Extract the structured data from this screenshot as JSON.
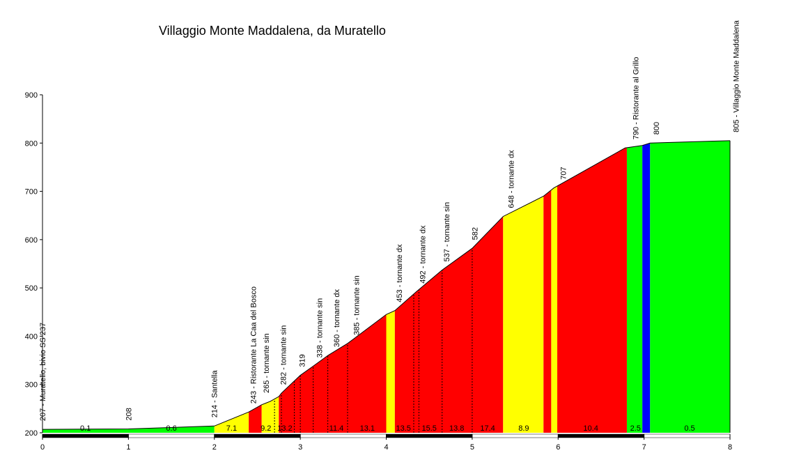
{
  "chart_data": {
    "type": "area",
    "title": "Villaggio Monte Maddalena, da Muratello",
    "xlim": [
      0,
      8
    ],
    "ylim": [
      200,
      900
    ],
    "x_ticks": [
      0,
      1,
      2,
      3,
      4,
      5,
      6,
      7,
      8
    ],
    "y_ticks": [
      200,
      300,
      400,
      500,
      600,
      700,
      800,
      900
    ],
    "colors": {
      "green": "#00ff00",
      "yellow": "#ffff00",
      "red": "#ff0000",
      "blue": "#0000ff",
      "axis": "#000000"
    },
    "profile": [
      {
        "x": 0.0,
        "y": 207
      },
      {
        "x": 1.0,
        "y": 208
      },
      {
        "x": 2.0,
        "y": 214
      },
      {
        "x": 2.4,
        "y": 243
      },
      {
        "x": 2.55,
        "y": 258
      },
      {
        "x": 2.65,
        "y": 265
      },
      {
        "x": 2.75,
        "y": 275
      },
      {
        "x": 2.78,
        "y": 282
      },
      {
        "x": 3.0,
        "y": 319
      },
      {
        "x": 3.15,
        "y": 338
      },
      {
        "x": 3.32,
        "y": 360
      },
      {
        "x": 3.55,
        "y": 385
      },
      {
        "x": 4.0,
        "y": 445
      },
      {
        "x": 4.1,
        "y": 453
      },
      {
        "x": 4.35,
        "y": 492
      },
      {
        "x": 4.65,
        "y": 537
      },
      {
        "x": 5.0,
        "y": 582
      },
      {
        "x": 5.36,
        "y": 648
      },
      {
        "x": 5.83,
        "y": 690
      },
      {
        "x": 5.95,
        "y": 707
      },
      {
        "x": 6.78,
        "y": 790
      },
      {
        "x": 6.98,
        "y": 795
      },
      {
        "x": 7.07,
        "y": 800
      },
      {
        "x": 8.0,
        "y": 805
      }
    ],
    "bands": [
      {
        "x0": 0.0,
        "x1": 2.0,
        "color": "green"
      },
      {
        "x0": 2.0,
        "x1": 2.4,
        "color": "yellow"
      },
      {
        "x0": 2.4,
        "x1": 2.55,
        "color": "red"
      },
      {
        "x0": 2.55,
        "x1": 2.75,
        "color": "yellow"
      },
      {
        "x0": 2.75,
        "x1": 4.0,
        "color": "red"
      },
      {
        "x0": 4.0,
        "x1": 4.1,
        "color": "yellow"
      },
      {
        "x0": 4.1,
        "x1": 5.36,
        "color": "red"
      },
      {
        "x0": 5.36,
        "x1": 5.83,
        "color": "yellow"
      },
      {
        "x0": 5.83,
        "x1": 5.92,
        "color": "red"
      },
      {
        "x0": 5.92,
        "x1": 5.99,
        "color": "yellow"
      },
      {
        "x0": 5.99,
        "x1": 6.8,
        "color": "red"
      },
      {
        "x0": 6.8,
        "x1": 6.98,
        "color": "green"
      },
      {
        "x0": 6.98,
        "x1": 7.07,
        "color": "blue"
      },
      {
        "x0": 7.07,
        "x1": 8.0,
        "color": "green"
      }
    ],
    "dashed_lines": [
      2.7,
      2.78,
      2.93,
      3.0,
      3.15,
      3.32,
      3.55,
      4.32,
      4.38,
      4.65,
      5.0
    ],
    "segment_labels": [
      {
        "x": 0.5,
        "text": "0.1"
      },
      {
        "x": 1.5,
        "text": "0.6"
      },
      {
        "x": 2.2,
        "text": "7.1"
      },
      {
        "x": 2.6,
        "text": "9.2"
      },
      {
        "x": 2.82,
        "text": "13.2"
      },
      {
        "x": 3.42,
        "text": "11.4"
      },
      {
        "x": 3.78,
        "text": "13.1"
      },
      {
        "x": 4.2,
        "text": "13.5"
      },
      {
        "x": 4.5,
        "text": "15.5"
      },
      {
        "x": 4.82,
        "text": "13.8"
      },
      {
        "x": 5.18,
        "text": "17.4"
      },
      {
        "x": 5.6,
        "text": "8.9"
      },
      {
        "x": 6.38,
        "text": "10.4"
      },
      {
        "x": 6.9,
        "text": "2.5"
      },
      {
        "x": 7.53,
        "text": "0.5"
      }
    ],
    "point_labels": [
      {
        "x": 0.0,
        "y": 207,
        "text": "207 - Muratello, bivio  SS 237"
      },
      {
        "x": 1.0,
        "y": 208,
        "text": "208"
      },
      {
        "x": 2.0,
        "y": 214,
        "text": "214 - Santella"
      },
      {
        "x": 2.45,
        "y": 243,
        "text": "243 - Ristorante La Caa del Bosco"
      },
      {
        "x": 2.6,
        "y": 265,
        "text": "265 - tornante  sin"
      },
      {
        "x": 2.8,
        "y": 282,
        "text": "282 - tornante  sin"
      },
      {
        "x": 3.02,
        "y": 319,
        "text": "319"
      },
      {
        "x": 3.22,
        "y": 338,
        "text": "338 - tornante  sin"
      },
      {
        "x": 3.42,
        "y": 360,
        "text": "360 - tornante  dx"
      },
      {
        "x": 3.65,
        "y": 385,
        "text": "385 - tornante  sin"
      },
      {
        "x": 4.15,
        "y": 453,
        "text": "453 - tornante  dx"
      },
      {
        "x": 4.42,
        "y": 492,
        "text": "492 - tornante  dx"
      },
      {
        "x": 4.7,
        "y": 537,
        "text": "537 - tornante  sin"
      },
      {
        "x": 5.03,
        "y": 582,
        "text": "582"
      },
      {
        "x": 5.45,
        "y": 648,
        "text": "648 - tornante  dx"
      },
      {
        "x": 6.06,
        "y": 707,
        "text": "707"
      },
      {
        "x": 6.9,
        "y": 790,
        "text": "790 - Ristorante al Grillo"
      },
      {
        "x": 7.14,
        "y": 800,
        "text": "800"
      },
      {
        "x": 8.07,
        "y": 805,
        "text": "805 - Villaggio Monte Maddalena"
      }
    ]
  }
}
